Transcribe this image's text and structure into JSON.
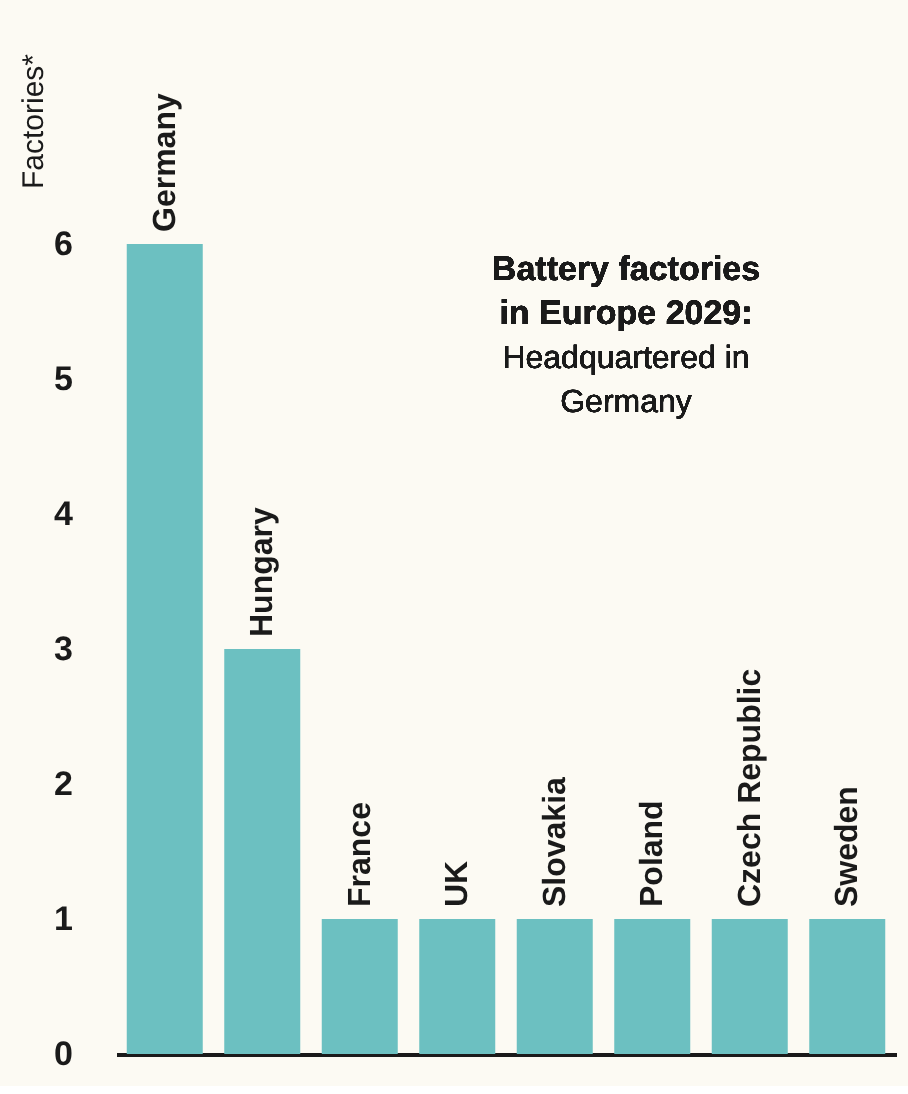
{
  "chart_data": {
    "type": "bar",
    "title": "Battery factories in Europe 2029:",
    "subtitle": "Headquartered in Germany",
    "ylabel": "Factories*",
    "categories": [
      "Germany",
      "Hungary",
      "France",
      "UK",
      "Slovakia",
      "Poland",
      "Czech Republic",
      "Sweden"
    ],
    "values": [
      6,
      3,
      1,
      1,
      1,
      1,
      1,
      1
    ],
    "color": "#6cc0c1",
    "ylim": [
      0,
      6
    ],
    "yticks": [
      0,
      1,
      2,
      3,
      4,
      5,
      6
    ],
    "grid": false
  }
}
